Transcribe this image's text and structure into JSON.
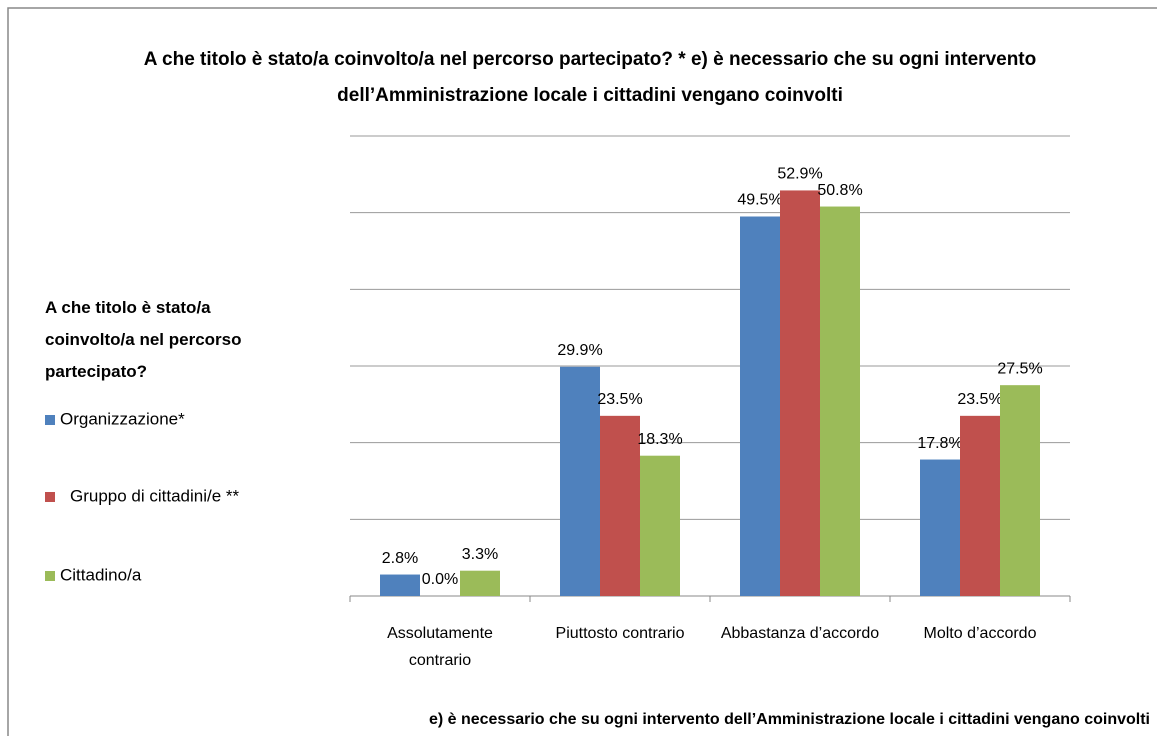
{
  "chart_data": {
    "type": "bar",
    "title": "A che titolo è stato/a coinvolto/a nel percorso partecipato? * e) è necessario che su ogni intervento dell’Amministrazione locale i cittadini vengano coinvolti",
    "x_label": "e) è necessario che su ogni intervento dell’Amministrazione locale i cittadini vengano coinvolti",
    "legend_title": "A che titolo è stato/a coinvolto/a nel percorso partecipato?",
    "legend_position": "left",
    "categories": [
      "Assolutamente contrario",
      "Piuttosto contrario",
      "Abbastanza d’accordo",
      "Molto d’accordo"
    ],
    "series": [
      {
        "name": "Organizzazione*",
        "color": "#4f81bd",
        "values": [
          2.8,
          29.9,
          49.5,
          17.8
        ],
        "value_labels": [
          "2.8%",
          "29.9%",
          "49.5%",
          "17.8%"
        ]
      },
      {
        "name": "Gruppo di cittadini/e **",
        "color": "#c0504d",
        "values": [
          0.0,
          23.5,
          52.9,
          23.5
        ],
        "value_labels": [
          "0.0%",
          "23.5%",
          "52.9%",
          "23.5%"
        ]
      },
      {
        "name": "Cittadino/a",
        "color": "#9bbb59",
        "values": [
          3.3,
          18.3,
          50.8,
          27.5
        ],
        "value_labels": [
          "3.3%",
          "18.3%",
          "50.8%",
          "27.5%"
        ]
      }
    ],
    "ylim": [
      0,
      60
    ],
    "yticks": [
      0,
      10,
      20,
      30,
      40,
      50,
      60
    ],
    "grid": true
  }
}
